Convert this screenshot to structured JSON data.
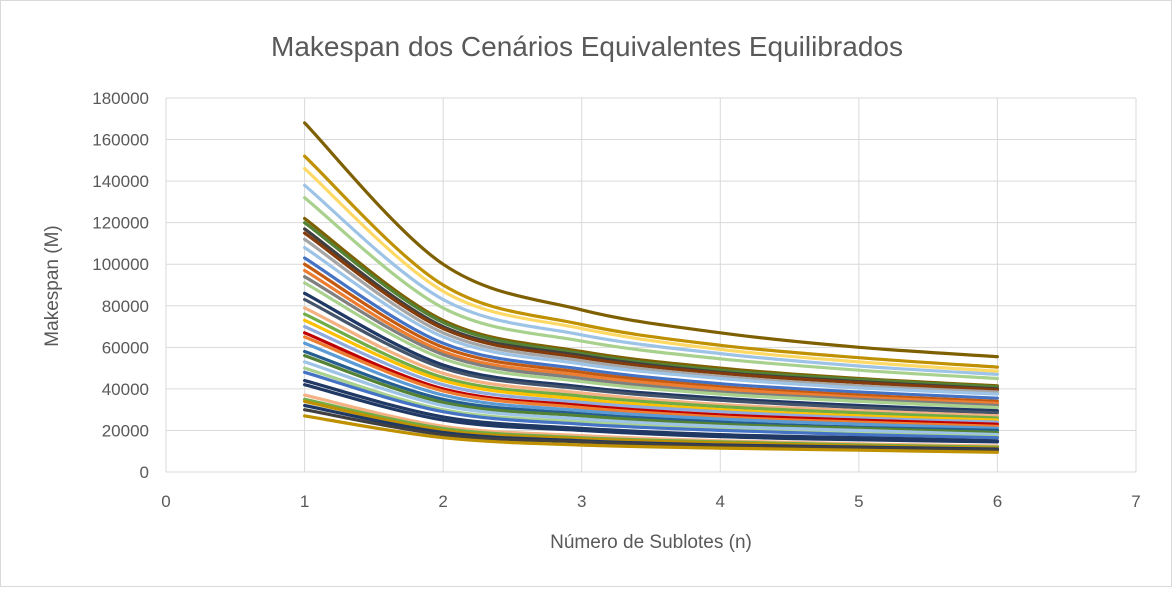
{
  "chart_data": {
    "type": "line",
    "title": "Makespan dos Cenários Equivalentes Equilibrados",
    "xlabel": "Número de Sublotes (n)",
    "ylabel": "Makespan (M)",
    "xlim": [
      0,
      7
    ],
    "ylim": [
      0,
      180000
    ],
    "x_ticks": [
      0,
      1,
      2,
      3,
      4,
      5,
      6,
      7
    ],
    "y_ticks": [
      0,
      20000,
      40000,
      60000,
      80000,
      100000,
      120000,
      140000,
      160000,
      180000
    ],
    "grid": true,
    "legend": "none",
    "x": [
      1,
      2,
      3,
      4,
      5,
      6
    ],
    "series": [
      {
        "color": "#7f6000",
        "values": [
          168000,
          100000,
          78000,
          67000,
          60000,
          55500
        ]
      },
      {
        "color": "#bf9000",
        "values": [
          152000,
          90000,
          71000,
          61000,
          55000,
          50500
        ]
      },
      {
        "color": "#ffd966",
        "values": [
          146000,
          87000,
          69000,
          59000,
          53000,
          48500
        ]
      },
      {
        "color": "#9dc3e6",
        "values": [
          138000,
          83000,
          66000,
          57000,
          51000,
          47000
        ]
      },
      {
        "color": "#a9d18e",
        "values": [
          132000,
          79000,
          63000,
          54500,
          49000,
          45000
        ]
      },
      {
        "color": "#7f6000",
        "values": [
          122000,
          73000,
          58000,
          50000,
          45000,
          41500
        ]
      },
      {
        "color": "#548235",
        "values": [
          120000,
          72000,
          57000,
          49000,
          44500,
          41000
        ]
      },
      {
        "color": "#404040",
        "values": [
          117000,
          70000,
          56000,
          48000,
          43500,
          40000
        ]
      },
      {
        "color": "#843c0c",
        "values": [
          115000,
          69000,
          55000,
          47500,
          43000,
          39500
        ]
      },
      {
        "color": "#a5a5a5",
        "values": [
          112000,
          67000,
          53500,
          46000,
          41500,
          38500
        ]
      },
      {
        "color": "#9dc3e6",
        "values": [
          108000,
          65000,
          52000,
          45000,
          40500,
          37500
        ]
      },
      {
        "color": "#4472c4",
        "values": [
          103000,
          62000,
          49500,
          42500,
          38500,
          35500
        ]
      },
      {
        "color": "#c55a11",
        "values": [
          100000,
          60000,
          48000,
          41000,
          37000,
          34000
        ]
      },
      {
        "color": "#ed7d31",
        "values": [
          97000,
          58000,
          46500,
          40000,
          36000,
          33000
        ]
      },
      {
        "color": "#7f7f7f",
        "values": [
          94000,
          56500,
          45000,
          38500,
          35000,
          32000
        ]
      },
      {
        "color": "#a9d18e",
        "values": [
          91000,
          54500,
          43500,
          37500,
          34000,
          31000
        ]
      },
      {
        "color": "#203864",
        "values": [
          86000,
          51500,
          41000,
          35500,
          32000,
          29500
        ]
      },
      {
        "color": "#44546a",
        "values": [
          83000,
          50000,
          40000,
          34500,
          31000,
          28500
        ]
      },
      {
        "color": "#f4b183",
        "values": [
          79000,
          47500,
          38000,
          32500,
          29500,
          27000
        ]
      },
      {
        "color": "#70ad47",
        "values": [
          76000,
          45500,
          36500,
          31500,
          28500,
          26000
        ]
      },
      {
        "color": "#ffc000",
        "values": [
          73000,
          44000,
          35000,
          30000,
          27000,
          25000
        ]
      },
      {
        "color": "#8faadc",
        "values": [
          70000,
          42000,
          33500,
          29000,
          26000,
          24000
        ]
      },
      {
        "color": "#c00000",
        "values": [
          67000,
          40000,
          32000,
          27500,
          25000,
          23000
        ]
      },
      {
        "color": "#ed7d31",
        "values": [
          65000,
          39000,
          31000,
          26500,
          24000,
          22000
        ]
      },
      {
        "color": "#5b9bd5",
        "values": [
          62000,
          37000,
          29500,
          25500,
          23000,
          21000
        ]
      },
      {
        "color": "#255e91",
        "values": [
          58000,
          35000,
          28000,
          24000,
          21500,
          20000
        ]
      },
      {
        "color": "#548235",
        "values": [
          56000,
          33500,
          27000,
          23000,
          21000,
          19000
        ]
      },
      {
        "color": "#9dc3e6",
        "values": [
          53000,
          32000,
          25500,
          22000,
          20000,
          18000
        ]
      },
      {
        "color": "#a9d18e",
        "values": [
          50000,
          30000,
          24000,
          20500,
          18500,
          17000
        ]
      },
      {
        "color": "#4472c4",
        "values": [
          48000,
          29000,
          23000,
          20000,
          18000,
          16500
        ]
      },
      {
        "color": "#1f3864",
        "values": [
          44000,
          26500,
          21000,
          18000,
          16500,
          15000
        ]
      },
      {
        "color": "#203864",
        "values": [
          42000,
          25000,
          20000,
          17000,
          15500,
          14500
        ]
      },
      {
        "color": "#f4b183",
        "values": [
          37000,
          22000,
          17500,
          15000,
          13500,
          12500
        ]
      },
      {
        "color": "#70ad47",
        "values": [
          35000,
          21000,
          16500,
          14500,
          13000,
          12000
        ]
      },
      {
        "color": "#bf9000",
        "values": [
          34000,
          20000,
          16000,
          14000,
          12500,
          11500
        ]
      },
      {
        "color": "#1f3864",
        "values": [
          32000,
          19000,
          15000,
          13000,
          12000,
          11000
        ]
      },
      {
        "color": "#404040",
        "values": [
          30000,
          18000,
          14500,
          12500,
          11500,
          10500
        ]
      },
      {
        "color": "#bf9000",
        "values": [
          27000,
          16500,
          13000,
          11500,
          10500,
          9500
        ]
      }
    ]
  }
}
